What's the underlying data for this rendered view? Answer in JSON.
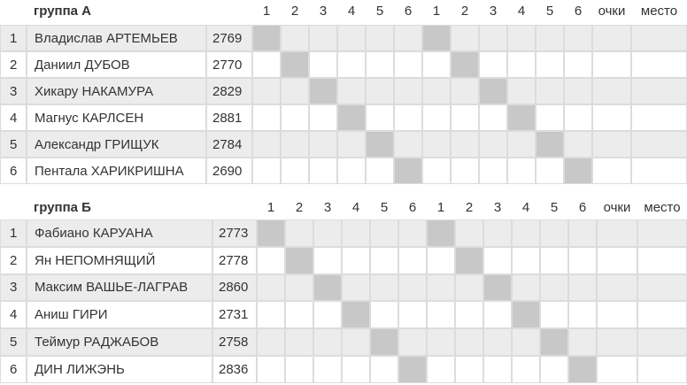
{
  "groups": [
    {
      "title": "группа А",
      "columns": [
        "1",
        "2",
        "3",
        "4",
        "5",
        "6",
        "1",
        "2",
        "3",
        "4",
        "5",
        "6",
        "очки",
        "место"
      ],
      "rows": [
        {
          "num": "1",
          "name": "Владислав АРТЕМЬЕВ",
          "rating": "2769"
        },
        {
          "num": "2",
          "name": "Даниил ДУБОВ",
          "rating": "2770"
        },
        {
          "num": "3",
          "name": "Хикару НАКАМУРА",
          "rating": "2829"
        },
        {
          "num": "4",
          "name": "Магнус КАРЛСЕН",
          "rating": "2881"
        },
        {
          "num": "5",
          "name": "Александр ГРИЩУК",
          "rating": "2784"
        },
        {
          "num": "6",
          "name": "Пентала ХАРИКРИШНА",
          "rating": "2690"
        }
      ]
    },
    {
      "title": "группа Б",
      "columns": [
        "1",
        "2",
        "3",
        "4",
        "5",
        "6",
        "1",
        "2",
        "3",
        "4",
        "5",
        "6",
        "очки",
        "место"
      ],
      "rows": [
        {
          "num": "1",
          "name": "Фабиано КАРУАНА",
          "rating": "2773"
        },
        {
          "num": "2",
          "name": "Ян НЕПОМНЯЩИЙ",
          "rating": "2778"
        },
        {
          "num": "3",
          "name": "Максим ВАШЬЕ-ЛАГРАВ",
          "rating": "2860"
        },
        {
          "num": "4",
          "name": "Аниш ГИРИ",
          "rating": "2731"
        },
        {
          "num": "5",
          "name": "Теймур РАДЖАБОВ",
          "rating": "2758"
        },
        {
          "num": "6",
          "name": "ДИН ЛИЖЭНЬ",
          "rating": "2836"
        }
      ]
    }
  ]
}
